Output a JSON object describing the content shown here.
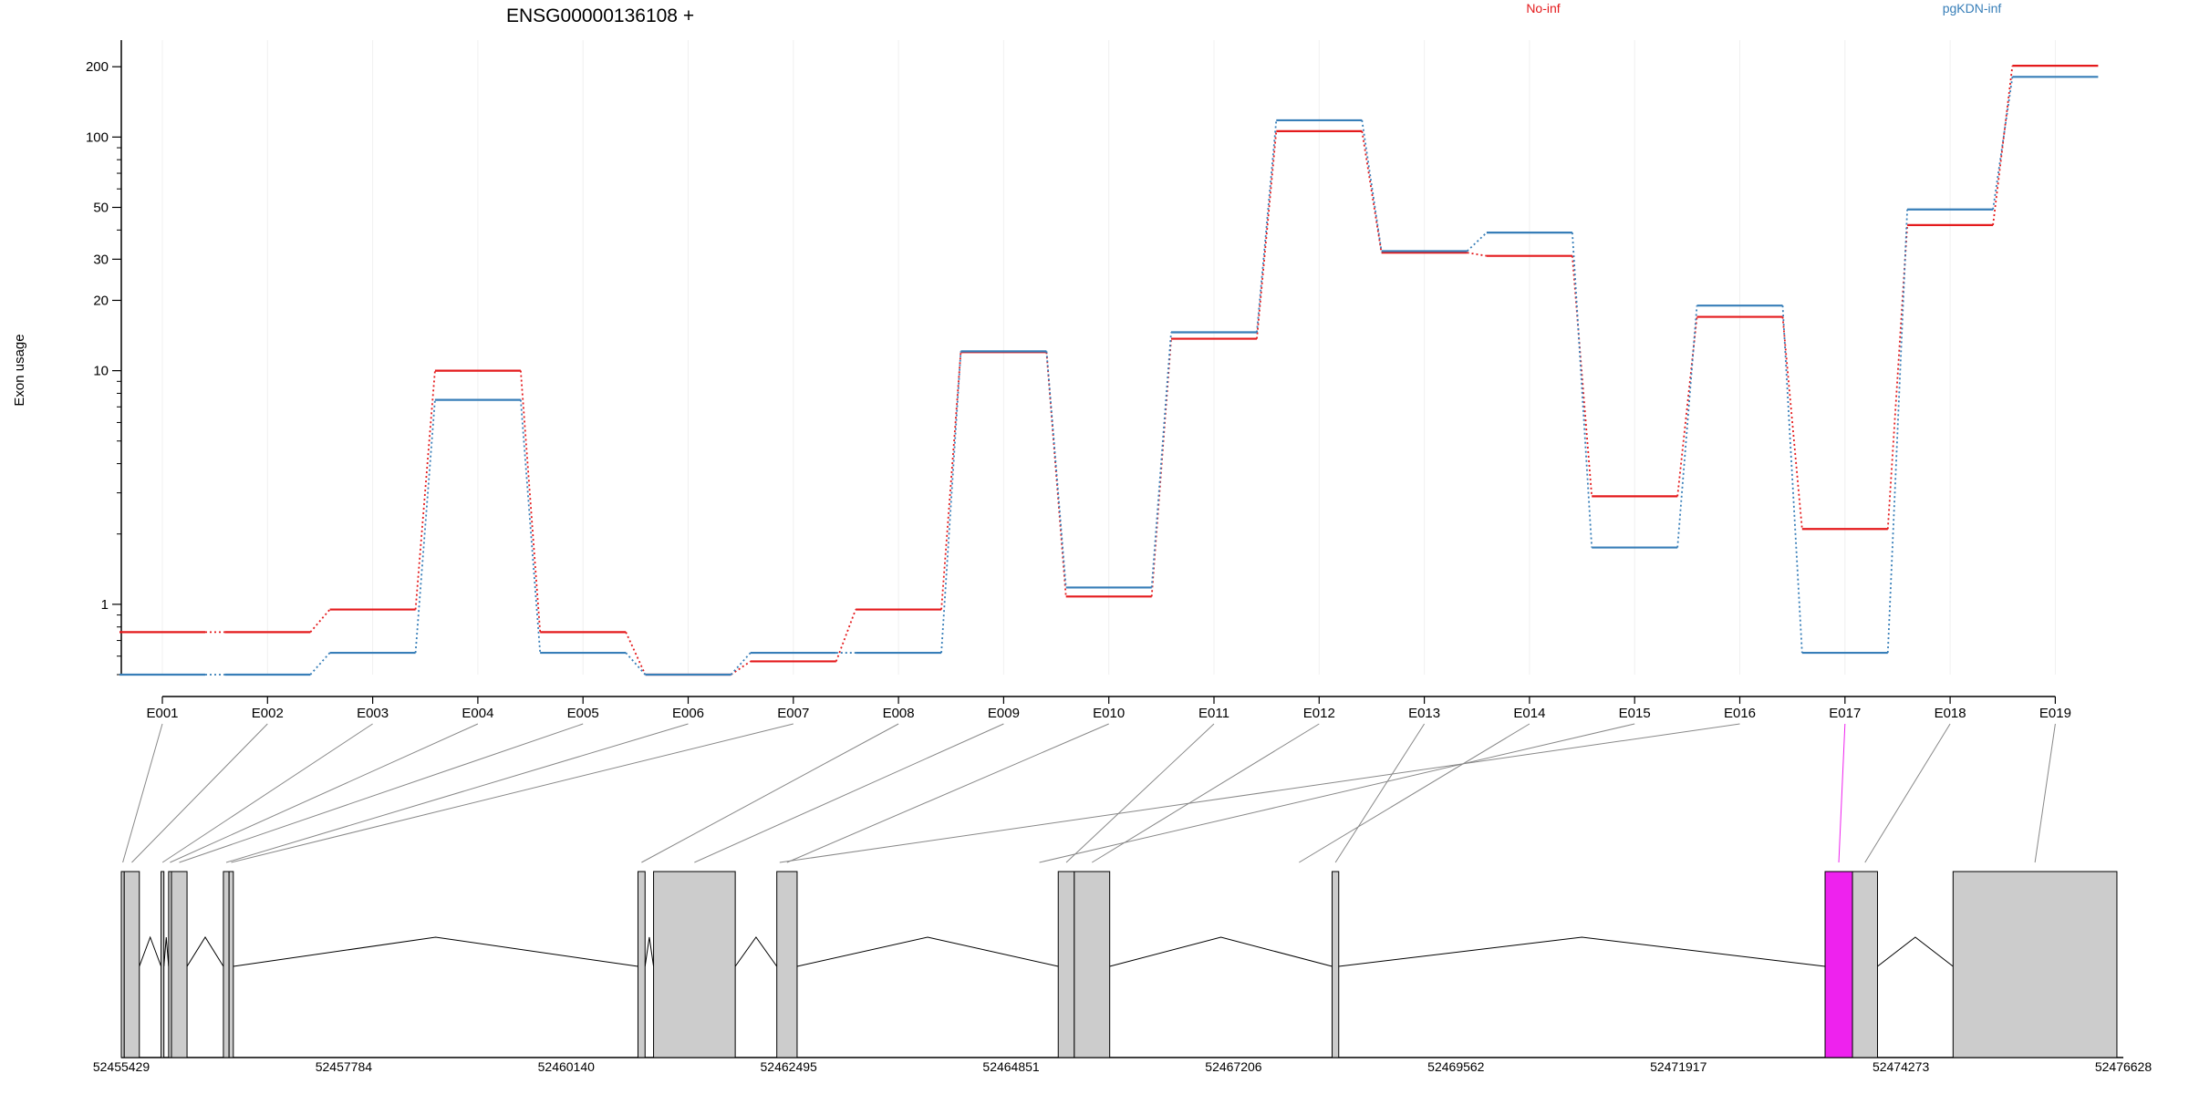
{
  "chart_data": {
    "type": "line",
    "title": "ENSG00000136108 +",
    "xlabel": "",
    "ylabel": "Exon usage",
    "y_scale": "log",
    "ylim": [
      0.5,
      260
    ],
    "y_ticks": [
      {
        "value": 200,
        "label": "200"
      },
      {
        "value": 100,
        "label": "100"
      },
      {
        "value": 50,
        "label": "50"
      },
      {
        "value": 30,
        "label": "30"
      },
      {
        "value": 20,
        "label": "20"
      },
      {
        "value": 10,
        "label": "10"
      },
      {
        "value": 1,
        "label": "1"
      }
    ],
    "y_minor_ticks": [
      0.5,
      0.6,
      0.7,
      0.8,
      0.9,
      2,
      3,
      4,
      5,
      6,
      7,
      8,
      9,
      40,
      60,
      70,
      80,
      90
    ],
    "grid": true,
    "legend_placement": "top",
    "categories": [
      "E001",
      "E002",
      "E003",
      "E004",
      "E005",
      "E006",
      "E007",
      "E008",
      "E009",
      "E010",
      "E011",
      "E012",
      "E013",
      "E014",
      "E015",
      "E016",
      "E017",
      "E018",
      "E019"
    ],
    "series": [
      {
        "name": "No-inf",
        "color": "#e41a1c",
        "values": [
          0.76,
          0.76,
          0.95,
          10.0,
          0.76,
          0.5,
          0.57,
          0.95,
          12.0,
          1.08,
          13.7,
          106,
          32,
          31,
          2.9,
          17,
          2.1,
          42,
          202
        ]
      },
      {
        "name": "pgKDN-inf",
        "color": "#377eb8",
        "values": [
          0.5,
          0.5,
          0.62,
          7.5,
          0.62,
          0.5,
          0.62,
          0.62,
          12.1,
          1.18,
          14.6,
          118,
          32.5,
          39,
          1.75,
          19,
          0.62,
          49,
          181
        ]
      }
    ],
    "gene_model": {
      "coordinate_labels": [
        "52455429",
        "52457784",
        "52460140",
        "52462495",
        "52464851",
        "52467206",
        "52469562",
        "52471917",
        "52474273",
        "52476628"
      ],
      "coord_start": 52455429,
      "coord_end": 52476628,
      "exon_color": "#cccccc",
      "highlight_color": "#ee22ee",
      "highlighted_exon": "E017",
      "exons": [
        {
          "id": "E001",
          "start": 52455429,
          "end": 52455460
        },
        {
          "id": "E002",
          "start": 52455460,
          "end": 52455620
        },
        {
          "id": "E003",
          "start": 52455850,
          "end": 52455880
        },
        {
          "id": "E004",
          "start": 52455930,
          "end": 52455960
        },
        {
          "id": "E005",
          "start": 52455960,
          "end": 52456125
        },
        {
          "id": "E006",
          "start": 52456510,
          "end": 52456570
        },
        {
          "id": "E007",
          "start": 52456570,
          "end": 52456615
        },
        {
          "id": "E008",
          "start": 52460900,
          "end": 52460975
        },
        {
          "id": "E009",
          "start": 52461065,
          "end": 52461930
        },
        {
          "id": "E010",
          "start": 52462370,
          "end": 52462585
        },
        {
          "id": "E011",
          "start": 52465350,
          "end": 52465520
        },
        {
          "id": "E012",
          "start": 52465520,
          "end": 52465895
        },
        {
          "id": "E013",
          "start": 52468250,
          "end": 52468320
        },
        {
          "id": "E017",
          "start": 52473470,
          "end": 52473760
        },
        {
          "id": "E018",
          "start": 52473760,
          "end": 52474025
        },
        {
          "id": "E019",
          "start": 52474825,
          "end": 52476560
        }
      ]
    }
  }
}
